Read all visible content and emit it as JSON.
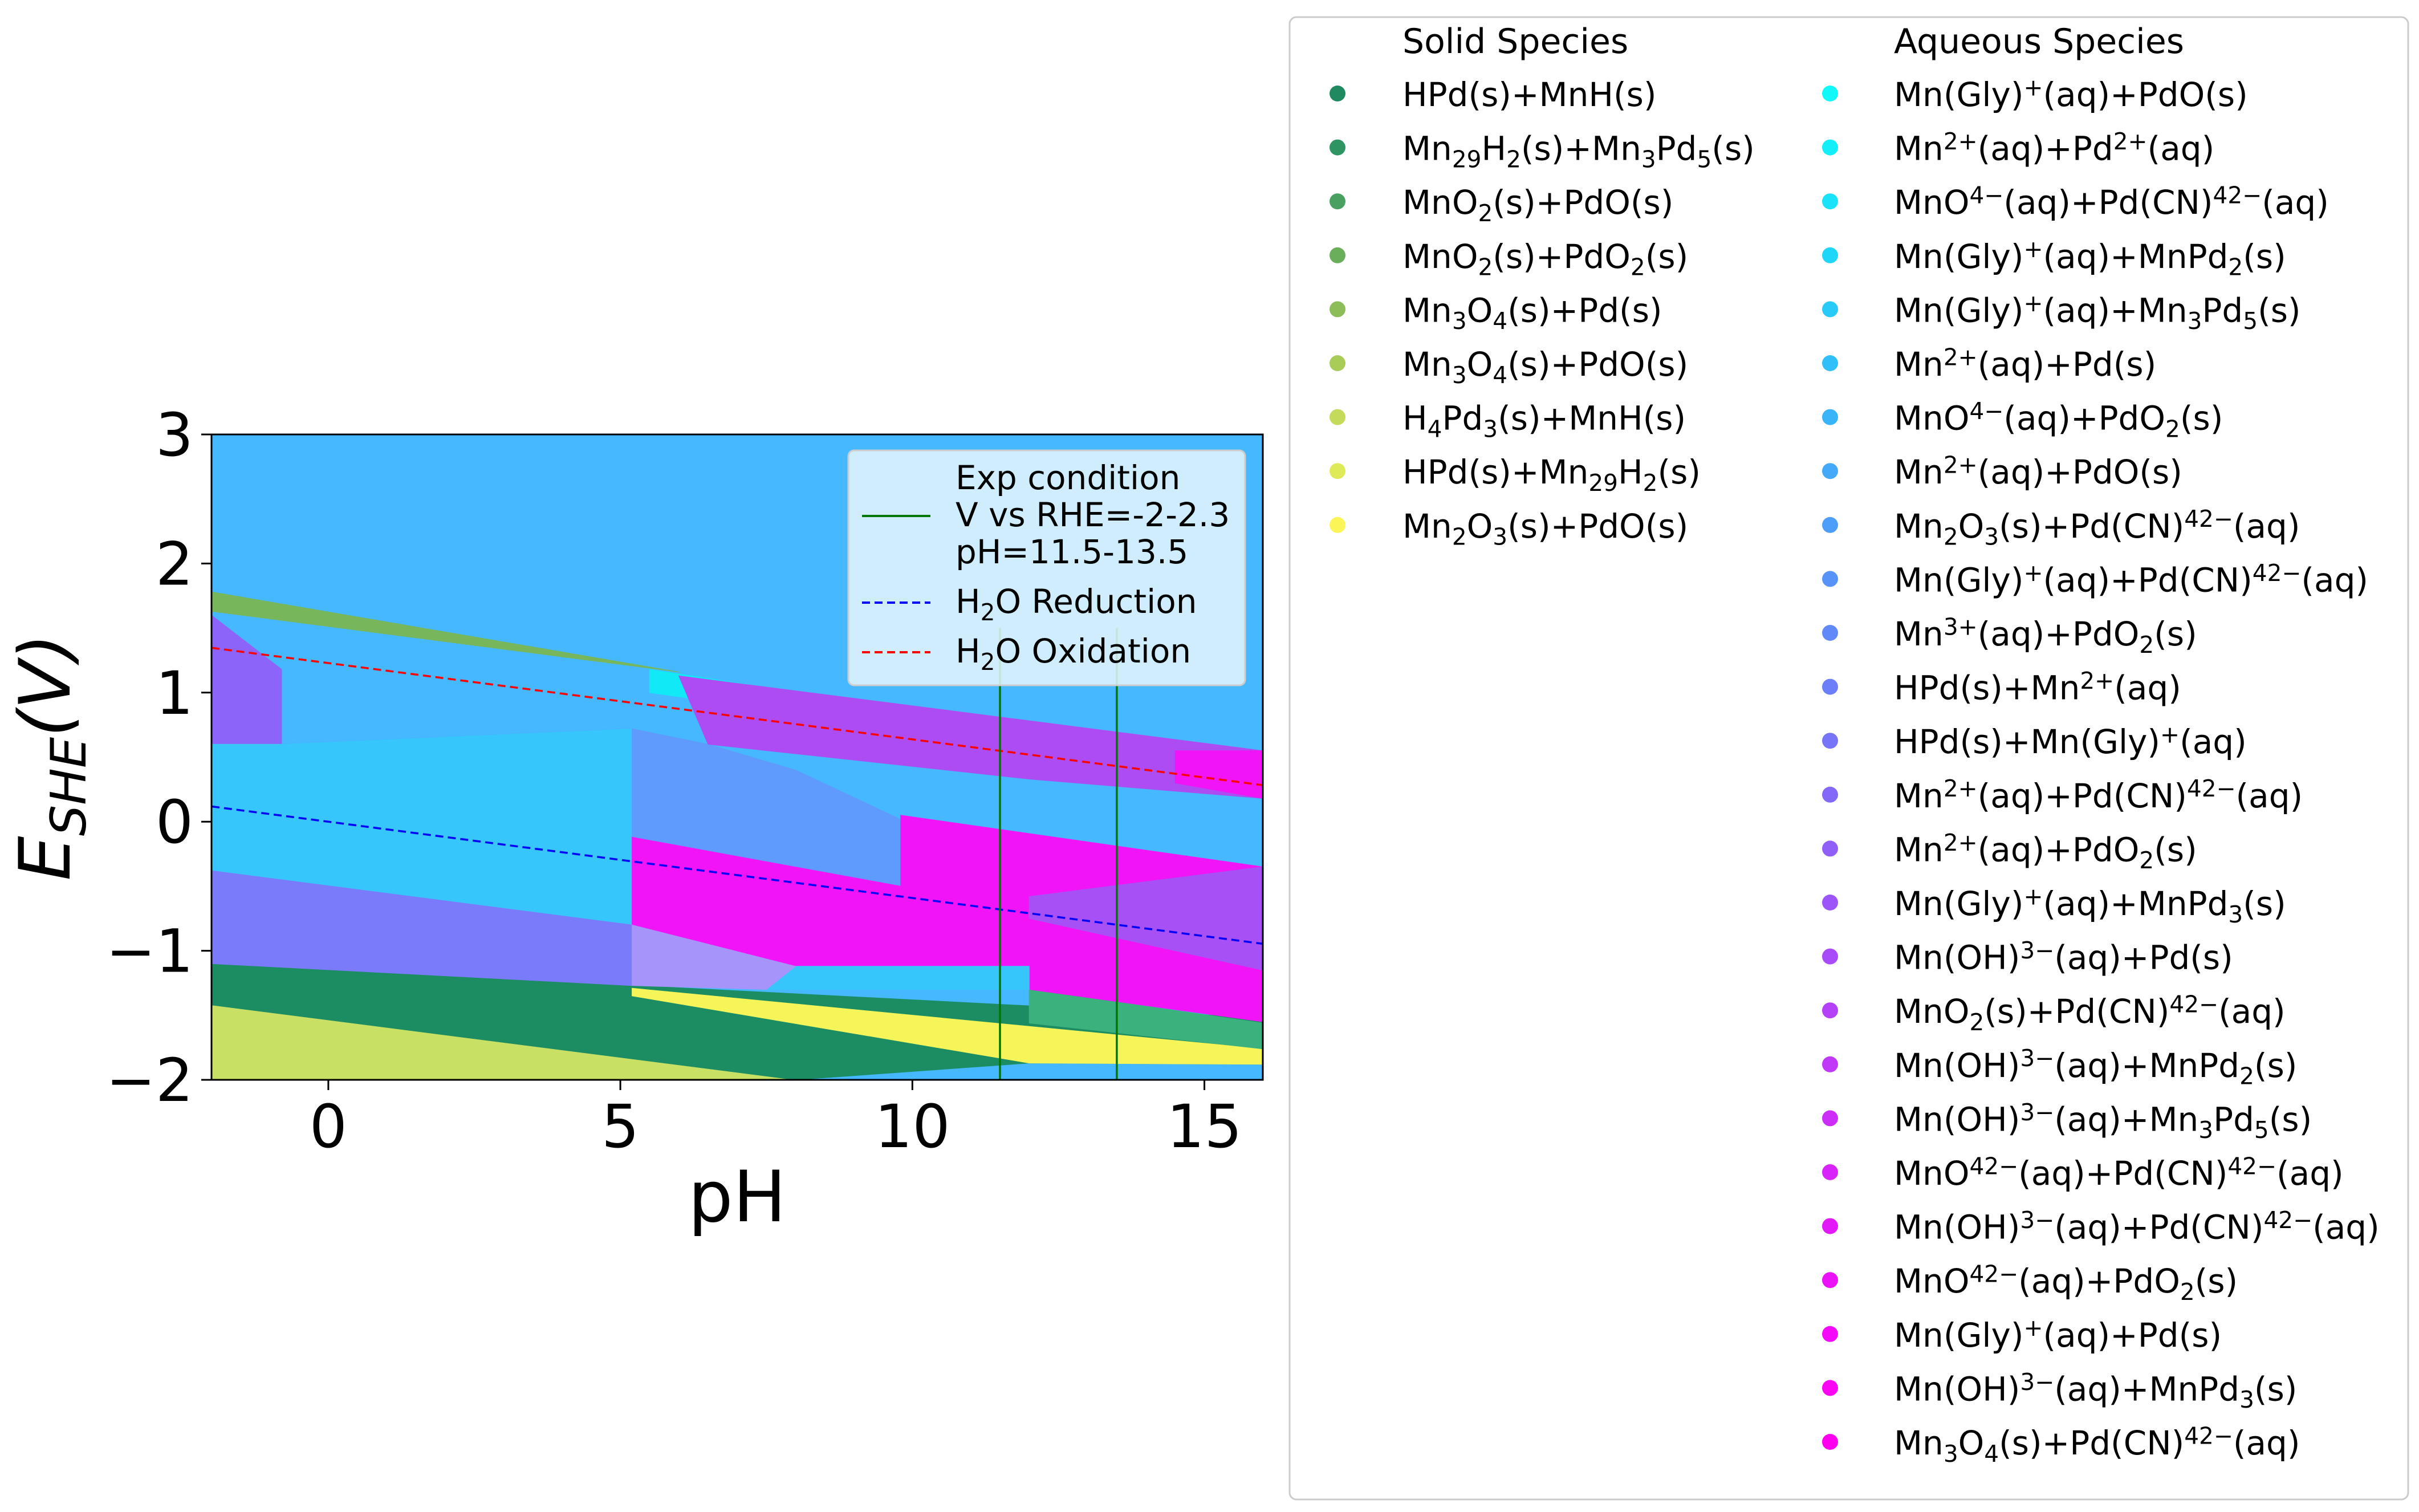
{
  "chart_data": {
    "type": "area",
    "title": "",
    "xlabel": "pH",
    "ylabel_main": "E",
    "ylabel_sub": "SHE",
    "ylabel_tail": "(V)",
    "xlim": [
      -2,
      16
    ],
    "ylim": [
      -2,
      3
    ],
    "x_ticks": [
      0,
      5,
      10,
      15
    ],
    "y_ticks": [
      -2,
      -1,
      0,
      1,
      2,
      3
    ],
    "plot_background": "#45b8ff",
    "grid": false,
    "regions": [
      {
        "color": "#c8e064",
        "points": [
          [
            -2,
            -1.42
          ],
          [
            8,
            -2.0
          ],
          [
            -2,
            -2.0
          ]
        ]
      },
      {
        "color": "#1c8c62",
        "points": [
          [
            -2,
            -1.1
          ],
          [
            16,
            -1.52
          ],
          [
            16,
            -1.88
          ],
          [
            12,
            -1.87
          ],
          [
            8,
            -2.0
          ],
          [
            -2,
            -1.42
          ]
        ]
      },
      {
        "color": "#f5f55a",
        "points": [
          [
            5.2,
            -1.29
          ],
          [
            16,
            -1.76
          ],
          [
            16,
            -1.88
          ],
          [
            12,
            -1.87
          ],
          [
            5.2,
            -1.35
          ]
        ]
      },
      {
        "color": "#3bb27d",
        "points": [
          [
            12,
            -1.3
          ],
          [
            16,
            -1.56
          ],
          [
            16,
            -1.76
          ],
          [
            12,
            -1.56
          ]
        ]
      },
      {
        "color": "#77b65a",
        "points": [
          [
            -2,
            1.78
          ],
          [
            6,
            1.16
          ],
          [
            -2,
            1.63
          ]
        ]
      },
      {
        "color": "#11e9f7",
        "points": [
          [
            -2,
            1.3
          ],
          [
            -0.8,
            1.15
          ],
          [
            -0.8,
            0.6
          ],
          [
            -2,
            0.6
          ]
        ]
      },
      {
        "color": "#11e9f7",
        "points": [
          [
            5.5,
            1.18
          ],
          [
            14.5,
            0.55
          ],
          [
            11,
            0.65
          ],
          [
            5.5,
            1.0
          ]
        ]
      },
      {
        "color": "#8c64fa",
        "points": [
          [
            -2,
            1.6
          ],
          [
            -0.8,
            1.18
          ],
          [
            -0.8,
            0.6
          ],
          [
            5.2,
            0.72
          ],
          [
            5.2,
            -0.8
          ],
          [
            -2,
            -0.8
          ],
          [
            -2,
            -0.38
          ],
          [
            -2,
            0.6
          ]
        ]
      },
      {
        "color": "#36c6fb",
        "points": [
          [
            -2,
            0.6
          ],
          [
            -0.8,
            0.6
          ],
          [
            5.2,
            0.72
          ],
          [
            5.2,
            -0.8
          ],
          [
            -2,
            -0.38
          ]
        ]
      },
      {
        "color": "#7a7bfb",
        "points": [
          [
            -2,
            -0.38
          ],
          [
            5.2,
            -0.8
          ],
          [
            5.2,
            -1.27
          ],
          [
            -2,
            -1.1
          ]
        ]
      },
      {
        "color": "#5f9bfc",
        "points": [
          [
            5.2,
            0.72
          ],
          [
            6.5,
            0.6
          ],
          [
            8,
            0.4
          ],
          [
            12,
            -0.45
          ],
          [
            12,
            -1.03
          ],
          [
            5.2,
            -0.8
          ]
        ]
      },
      {
        "color": "#ae4cf3",
        "points": [
          [
            6,
            1.13
          ],
          [
            16,
            0.55
          ],
          [
            16,
            0.18
          ],
          [
            12,
            0.33
          ],
          [
            6.5,
            0.6
          ]
        ]
      },
      {
        "color": "#f014f7",
        "points": [
          [
            9.8,
            0.05
          ],
          [
            16,
            -0.35
          ],
          [
            16,
            -1.55
          ],
          [
            12,
            -1.3
          ],
          [
            12,
            -0.58
          ],
          [
            11.2,
            -0.7
          ],
          [
            9.8,
            -0.5
          ]
        ]
      },
      {
        "color": "#f014f7",
        "points": [
          [
            14.5,
            0.55
          ],
          [
            16,
            0.55
          ],
          [
            16,
            0.18
          ],
          [
            14.5,
            0.3
          ]
        ]
      },
      {
        "color": "#f014f7",
        "points": [
          [
            5.2,
            -0.12
          ],
          [
            9.8,
            -0.5
          ],
          [
            11.2,
            -0.7
          ],
          [
            12,
            -0.58
          ],
          [
            12,
            -1.3
          ],
          [
            8,
            -1.12
          ],
          [
            5.2,
            -0.8
          ]
        ]
      },
      {
        "color": "#a650f5",
        "points": [
          [
            12,
            -0.58
          ],
          [
            16,
            -0.35
          ],
          [
            16,
            -1.15
          ],
          [
            12,
            -0.75
          ]
        ]
      },
      {
        "color": "#36c6fb",
        "points": [
          [
            8,
            -1.12
          ],
          [
            12,
            -1.12
          ],
          [
            12,
            -1.3
          ],
          [
            7.5,
            -1.3
          ]
        ]
      },
      {
        "color": "#a694fa",
        "points": [
          [
            5.2,
            -0.8
          ],
          [
            8,
            -1.12
          ],
          [
            7.5,
            -1.3
          ],
          [
            5.2,
            -1.27
          ]
        ]
      }
    ],
    "lines": [
      {
        "name": "H2O Reduction",
        "color": "#0000ff",
        "dash": true,
        "x": [
          -2,
          16
        ],
        "y": [
          0.118,
          -0.946
        ]
      },
      {
        "name": "H2O Oxidation",
        "color": "#ff0000",
        "dash": true,
        "x": [
          -2,
          16
        ],
        "y": [
          1.347,
          0.283
        ]
      },
      {
        "name": "Exp condition",
        "color": "#007700",
        "dash": false,
        "x": [
          11.5,
          11.5
        ],
        "y": [
          -2,
          1.5
        ]
      },
      {
        "name": "Exp condition",
        "color": "#007700",
        "dash": false,
        "x": [
          13.5,
          13.5
        ],
        "y": [
          -2,
          1.5
        ]
      }
    ],
    "inner_legend": {
      "position": "top-right",
      "entries": [
        {
          "color": "#007700",
          "dash": false,
          "lines": [
            "Exp condition",
            "V vs RHE=-2-2.3",
            "pH=11.5-13.5"
          ]
        },
        {
          "color": "#0000ff",
          "dash": true,
          "lines": [
            "H2O Reduction"
          ]
        },
        {
          "color": "#ff0000",
          "dash": true,
          "lines": [
            "H2O Oxidation"
          ]
        }
      ]
    },
    "outer_legend": {
      "position": "right",
      "solid_title": "Solid Species",
      "aqueous_title": "Aqueous Species",
      "solid": [
        {
          "label": "HPd(s)+MnH(s)",
          "color": "#1f8a60"
        },
        {
          "label": "Mn29H2(s)+Mn3Pd5(s)",
          "color": "#2e9462"
        },
        {
          "label": "MnO2(s)+PdO(s)",
          "color": "#49a060"
        },
        {
          "label": "MnO2(s)+PdO2(s)",
          "color": "#6aae5c"
        },
        {
          "label": "Mn3O4(s)+Pd(s)",
          "color": "#8cbd58"
        },
        {
          "label": "Mn3O4(s)+PdO(s)",
          "color": "#a9cc58"
        },
        {
          "label": "H4Pd3(s)+MnH(s)",
          "color": "#c4da5a"
        },
        {
          "label": "HPd(s)+Mn29H2(s)",
          "color": "#dfea58"
        },
        {
          "label": "Mn2O3(s)+PdO(s)",
          "color": "#fbf558"
        }
      ],
      "aqueous": [
        {
          "label": "Mn(Gly)+(aq)+PdO(s)",
          "color": "#10f8f8"
        },
        {
          "label": "Mn2+(aq)+Pd2+(aq)",
          "color": "#14eef8"
        },
        {
          "label": "MnO4−(aq)+Pd(CN)42−(aq)",
          "color": "#1ae2f8"
        },
        {
          "label": "Mn(Gly)+(aq)+MnPd2(s)",
          "color": "#20d6f8"
        },
        {
          "label": "Mn(Gly)+(aq)+Mn3Pd5(s)",
          "color": "#28cbf8"
        },
        {
          "label": "Mn2+(aq)+Pd(s)",
          "color": "#30bff8"
        },
        {
          "label": "MnO4−(aq)+PdO2(s)",
          "color": "#3ab4f8"
        },
        {
          "label": "Mn2+(aq)+PdO(s)",
          "color": "#44a9f8"
        },
        {
          "label": "Mn2O3(s)+Pd(CN)42−(aq)",
          "color": "#4c9ef8"
        },
        {
          "label": "Mn(Gly)+(aq)+Pd(CN)42−(aq)",
          "color": "#5894f8"
        },
        {
          "label": "Mn3+(aq)+PdO2(s)",
          "color": "#6289f8"
        },
        {
          "label": "HPd(s)+Mn2+(aq)",
          "color": "#6c7ff8"
        },
        {
          "label": "HPd(s)+Mn(Gly)+(aq)",
          "color": "#7874f8"
        },
        {
          "label": "Mn2+(aq)+Pd(CN)42−(aq)",
          "color": "#8469f8"
        },
        {
          "label": "Mn2+(aq)+PdO2(s)",
          "color": "#905ff8"
        },
        {
          "label": "Mn(Gly)+(aq)+MnPd3(s)",
          "color": "#9c55f8"
        },
        {
          "label": "Mn(OH)3−(aq)+Pd(s)",
          "color": "#a84bf8"
        },
        {
          "label": "MnO2(s)+Pd(CN)42−(aq)",
          "color": "#b441f8"
        },
        {
          "label": "Mn(OH)3−(aq)+MnPd2(s)",
          "color": "#c038f8"
        },
        {
          "label": "Mn(OH)3−(aq)+Mn3Pd5(s)",
          "color": "#cc2ef8"
        },
        {
          "label": "MnO42−(aq)+Pd(CN)42−(aq)",
          "color": "#d824f8"
        },
        {
          "label": "Mn(OH)3−(aq)+Pd(CN)42−(aq)",
          "color": "#e21af8"
        },
        {
          "label": "MnO42−(aq)+PdO2(s)",
          "color": "#ec12f8"
        },
        {
          "label": "Mn(Gly)+(aq)+Pd(s)",
          "color": "#f40af8"
        },
        {
          "label": "Mn(OH)3−(aq)+MnPd3(s)",
          "color": "#fa06f4"
        },
        {
          "label": "Mn3O4(s)+Pd(CN)42−(aq)",
          "color": "#ff00ee"
        }
      ]
    }
  }
}
